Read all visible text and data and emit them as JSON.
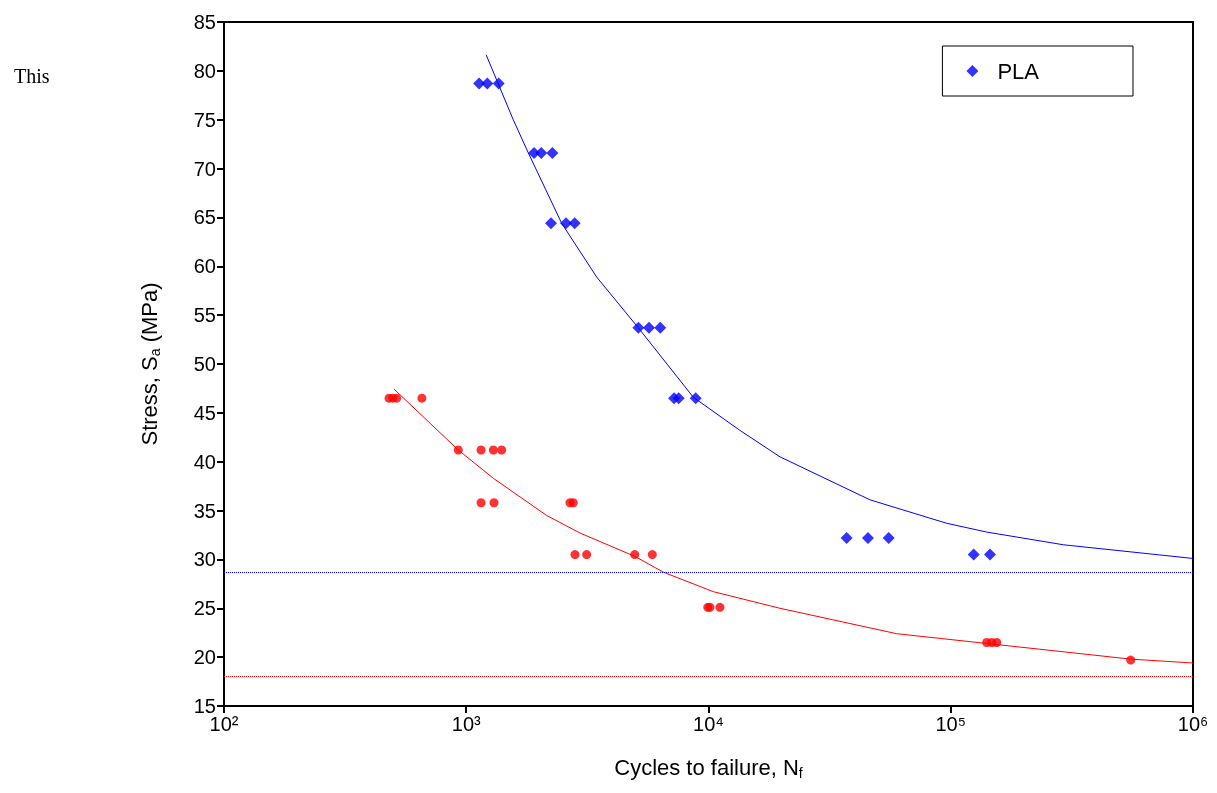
{
  "chart_data": {
    "type": "scatter",
    "xlabel": "Cycles to failure, N$_{f}$",
    "ylabel": "Stress, S$_{a}$ (MPa)",
    "annotations": [
      "This"
    ],
    "log": "x",
    "grid": false,
    "legend": "top right",
    "xlim": [
      100,
      1000000
    ],
    "xticks": [
      {
        "value": 100,
        "label": "10²"
      },
      {
        "value": 1000,
        "label": "10³"
      },
      {
        "value": 10000,
        "label": "10⁴"
      },
      {
        "value": 100000,
        "label": "10⁵"
      },
      {
        "value": 1000000,
        "label": "10⁶"
      }
    ],
    "ylim": [
      15,
      85
    ],
    "yticks": [
      15,
      20,
      25,
      30,
      35,
      40,
      45,
      50,
      55,
      60,
      65,
      70,
      75,
      80,
      85
    ],
    "series": [
      {
        "color": "#ff0000",
        "marker": "circle",
        "x": [
          480,
          497,
          516,
          656,
          927,
          1151,
          1294,
          1400,
          1151,
          1302,
          2681,
          2766,
          2811,
          3141,
          4960,
          5862,
          9930,
          10140,
          11150,
          140700,
          147600,
          154800,
          553000
        ],
        "values": [
          46.5,
          46.5,
          46.5,
          46.5,
          41.2,
          41.2,
          41.2,
          41.2,
          35.8,
          35.8,
          35.8,
          35.8,
          30.5,
          30.5,
          30.5,
          30.5,
          25.1,
          25.1,
          25.1,
          21.5,
          21.5,
          21.5,
          19.7
        ]
      },
      {
        "name": "PLA",
        "color": "#0000ff",
        "marker": "diamond",
        "x": [
          1130,
          1222,
          1361,
          1905,
          2040,
          2266,
          2238,
          2581,
          2803,
          5134,
          5680,
          6323,
          7207,
          7534,
          8856,
          37170,
          45530,
          55450,
          124400,
          145200
        ],
        "values": [
          78.7,
          78.7,
          78.7,
          71.6,
          71.6,
          71.6,
          64.4,
          64.4,
          64.4,
          53.7,
          53.7,
          53.7,
          46.5,
          46.5,
          46.5,
          32.2,
          32.2,
          32.2,
          30.5,
          30.5
        ]
      },
      {
        "type": "line",
        "color": "#ff0000",
        "marker": "none",
        "line_style": "solid",
        "x": [
          505,
          927,
          1294,
          2148,
          2948,
          4977,
          6508,
          10470,
          19730,
          59800,
          140700,
          553000,
          1000000
        ],
        "values": [
          47.4,
          41.2,
          38.3,
          34.5,
          32.7,
          30.3,
          28.7,
          26.7,
          25.0,
          22.4,
          21.4,
          19.8,
          19.4
        ]
      },
      {
        "type": "line",
        "color": "#0000ff",
        "marker": "none",
        "line_style": "solid",
        "x": [
          1210,
          1563,
          1804,
          2477,
          3454,
          5134,
          8655,
          13490,
          19730,
          46400,
          96200,
          140700,
          291700,
          1000000
        ],
        "values": [
          81.6,
          75.0,
          71.6,
          64.4,
          58.9,
          53.7,
          46.6,
          43.2,
          40.5,
          36.1,
          33.7,
          32.8,
          31.5,
          30.1
        ]
      }
    ],
    "ref_lines": [
      {
        "axis": "y",
        "value": 28.7,
        "color": "#0000ff",
        "line_style": "dotted"
      },
      {
        "axis": "y",
        "value": 18.0,
        "color": "#ff0000",
        "line_style": "dotted"
      }
    ]
  }
}
